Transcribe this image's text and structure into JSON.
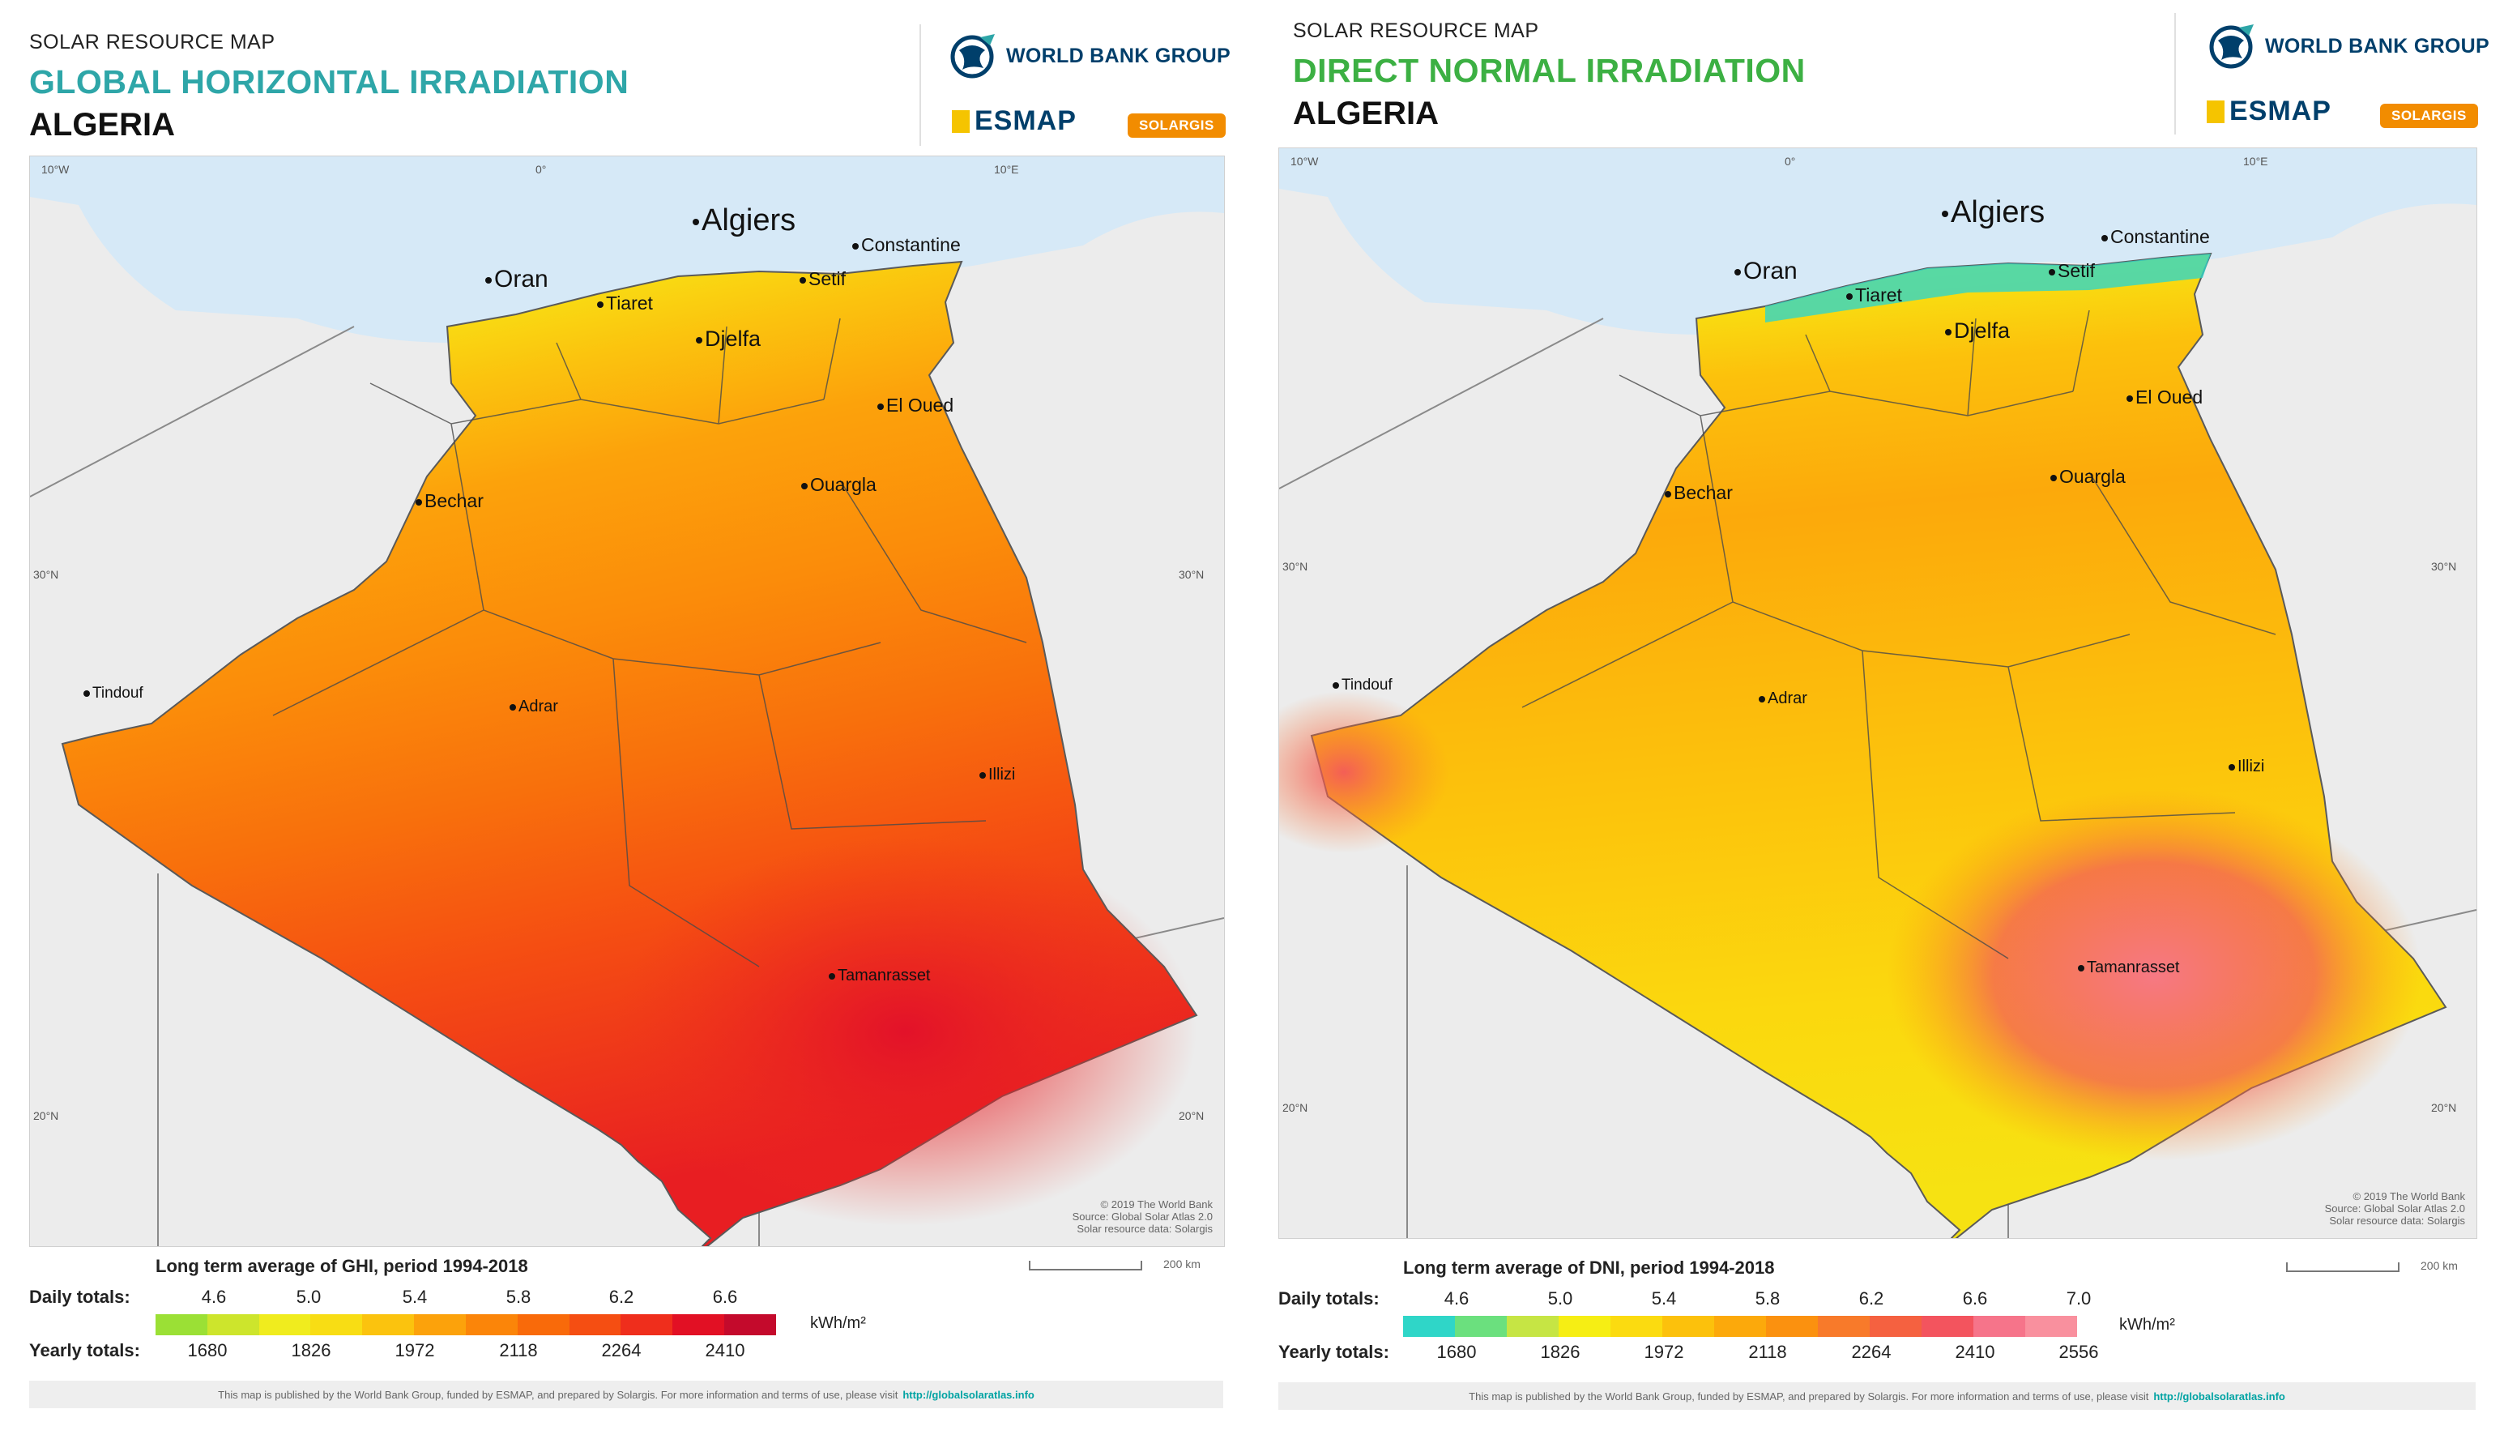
{
  "colors": {
    "ghi_title": "#2ea6a8",
    "dni_title": "#3cb043",
    "wbg_blue": "#003f6b",
    "sea": "#d6e9f7",
    "land": "#ececec",
    "border": "#4a4a4a"
  },
  "left": {
    "supertitle": "SOLAR RESOURCE MAP",
    "title": "GLOBAL HORIZONTAL IRRADIATION",
    "subtitle": "ALGERIA",
    "logos": {
      "wbg": "WORLD BANK GROUP",
      "esmap": "ESMAP",
      "solargis": "SOLARGIS"
    },
    "coords": {
      "w10": "10°W",
      "zero": "0°",
      "e10": "10°E",
      "n30": "30°N",
      "n20": "20°N"
    },
    "credits": [
      "© 2019 The World Bank",
      "Source: Global Solar Atlas 2.0",
      "Solar resource data: Solargis"
    ],
    "cities": {
      "algiers": "Algiers",
      "oran": "Oran",
      "tiaret": "Tiaret",
      "setif": "Setif",
      "constantine": "Constantine",
      "djelfa": "Djelfa",
      "el_oued": "El Oued",
      "bechar": "Bechar",
      "ouargla": "Ouargla",
      "tindouf": "Tindouf",
      "adrar": "Adrar",
      "illizi": "Illizi",
      "tamanrasset": "Tamanrasset"
    },
    "legend": {
      "title": "Long term average of GHI, period 1994-2018",
      "daily_label": "Daily totals:",
      "daily_values": [
        "4.6",
        "5.0",
        "5.4",
        "5.8",
        "6.2",
        "6.6"
      ],
      "yearly_label": "Yearly totals:",
      "yearly_values": [
        "1680",
        "1826",
        "1972",
        "2118",
        "2264",
        "2410"
      ],
      "unit": "kWh/m²",
      "colors": [
        "#9be035",
        "#cde52c",
        "#f0ec1e",
        "#f8dd14",
        "#fbc30e",
        "#fca20b",
        "#fb8509",
        "#f96a0a",
        "#f54e12",
        "#ef2e1c",
        "#e21024",
        "#c40a2c"
      ]
    },
    "scale": "200 km",
    "footer_text": "This map is published by the World Bank Group, funded by ESMAP, and prepared by Solargis. For more information and terms of use, please visit",
    "footer_link": "http://globalsolaratlas.info"
  },
  "right": {
    "supertitle": "SOLAR RESOURCE MAP",
    "title": "DIRECT NORMAL IRRADIATION",
    "subtitle": "ALGERIA",
    "logos": {
      "wbg": "WORLD BANK GROUP",
      "esmap": "ESMAP",
      "solargis": "SOLARGIS"
    },
    "coords": {
      "w10": "10°W",
      "zero": "0°",
      "e10": "10°E",
      "n30": "30°N",
      "n20": "20°N"
    },
    "credits": [
      "© 2019 The World Bank",
      "Source: Global Solar Atlas 2.0",
      "Solar resource data: Solargis"
    ],
    "cities": {
      "algiers": "Algiers",
      "oran": "Oran",
      "tiaret": "Tiaret",
      "setif": "Setif",
      "constantine": "Constantine",
      "djelfa": "Djelfa",
      "el_oued": "El Oued",
      "bechar": "Bechar",
      "ouargla": "Ouargla",
      "tindouf": "Tindouf",
      "adrar": "Adrar",
      "illizi": "Illizi",
      "tamanrasset": "Tamanrasset"
    },
    "legend": {
      "title": "Long term average of DNI, period 1994-2018",
      "daily_label": "Daily totals:",
      "daily_values": [
        "4.6",
        "5.0",
        "5.4",
        "5.8",
        "6.2",
        "6.6",
        "7.0"
      ],
      "yearly_label": "Yearly totals:",
      "yearly_values": [
        "1680",
        "1826",
        "1972",
        "2118",
        "2264",
        "2410",
        "2556"
      ],
      "unit": "kWh/m²",
      "colors": [
        "#2fd6c8",
        "#6be07e",
        "#c6e544",
        "#f6ee14",
        "#fbdb10",
        "#fcc10c",
        "#fca90b",
        "#fb910f",
        "#f87a2a",
        "#f56140",
        "#f3545e",
        "#f6748a",
        "#f9909e"
      ]
    },
    "scale": "200 km",
    "footer_text": "This map is published by the World Bank Group, funded by ESMAP, and prepared by Solargis. For more information and terms of use, please visit",
    "footer_link": "http://globalsolaratlas.info"
  }
}
